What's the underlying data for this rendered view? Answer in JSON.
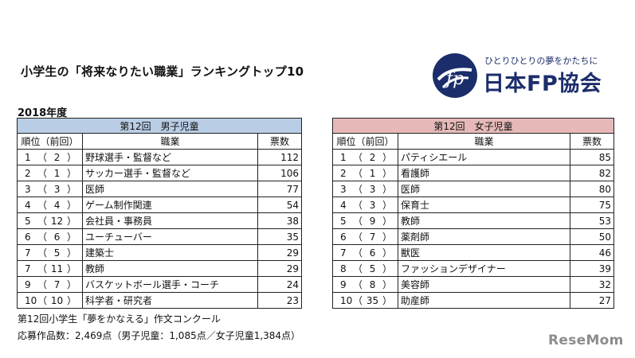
{
  "title": "小学生の「将来なりたい職業」ランキングトップ10",
  "logo": {
    "tagline": "ひとりひとりの夢をかたちに",
    "name": "日本FP協会",
    "color": "#1b2d6b"
  },
  "year": "2018年度",
  "boys": {
    "caption": "第12回　男子児童",
    "headers": {
      "rank": "順位（前回）",
      "job": "職業",
      "votes": "票数"
    },
    "rows": [
      {
        "rank": "1",
        "prev": "2",
        "job": "野球選手・監督など",
        "votes": "112"
      },
      {
        "rank": "2",
        "prev": "1",
        "job": "サッカー選手・監督など",
        "votes": "106"
      },
      {
        "rank": "3",
        "prev": "3",
        "job": "医師",
        "votes": "77"
      },
      {
        "rank": "4",
        "prev": "4",
        "job": "ゲーム制作関連",
        "votes": "54"
      },
      {
        "rank": "5",
        "prev": "12",
        "job": "会社員・事務員",
        "votes": "38"
      },
      {
        "rank": "6",
        "prev": "6",
        "job": "ユーチューバー",
        "votes": "35"
      },
      {
        "rank": "7",
        "prev": "5",
        "job": "建築士",
        "votes": "29"
      },
      {
        "rank": "7",
        "prev": "11",
        "job": "教師",
        "votes": "29"
      },
      {
        "rank": "9",
        "prev": "7",
        "job": "バスケットボール選手・コーチ",
        "votes": "24"
      },
      {
        "rank": "10",
        "prev": "10",
        "job": "科学者・研究者",
        "votes": "23"
      }
    ]
  },
  "girls": {
    "caption": "第12回　女子児童",
    "headers": {
      "rank": "順位（前回）",
      "job": "職業",
      "votes": "票数"
    },
    "rows": [
      {
        "rank": "1",
        "prev": "2",
        "job": "パティシエール",
        "votes": "85"
      },
      {
        "rank": "2",
        "prev": "1",
        "job": "看護師",
        "votes": "82"
      },
      {
        "rank": "3",
        "prev": "3",
        "job": "医師",
        "votes": "80"
      },
      {
        "rank": "4",
        "prev": "3",
        "job": "保育士",
        "votes": "75"
      },
      {
        "rank": "5",
        "prev": "9",
        "job": "教師",
        "votes": "53"
      },
      {
        "rank": "6",
        "prev": "7",
        "job": "薬剤師",
        "votes": "50"
      },
      {
        "rank": "7",
        "prev": "6",
        "job": "獣医",
        "votes": "46"
      },
      {
        "rank": "8",
        "prev": "5",
        "job": "ファッションデザイナー",
        "votes": "39"
      },
      {
        "rank": "9",
        "prev": "8",
        "job": "美容師",
        "votes": "32"
      },
      {
        "rank": "10",
        "prev": "35",
        "job": "助産師",
        "votes": "27"
      }
    ]
  },
  "footer": {
    "line1": "第12回小学生「夢をかなえる」作文コンクール",
    "line2": "応募作品数：2,469点（男子児童：1,085点／女子児童1,384点）"
  },
  "watermark": "ReseMom",
  "colors": {
    "boys_header": "#b9cde5",
    "girls_header": "#e6b9b8"
  }
}
